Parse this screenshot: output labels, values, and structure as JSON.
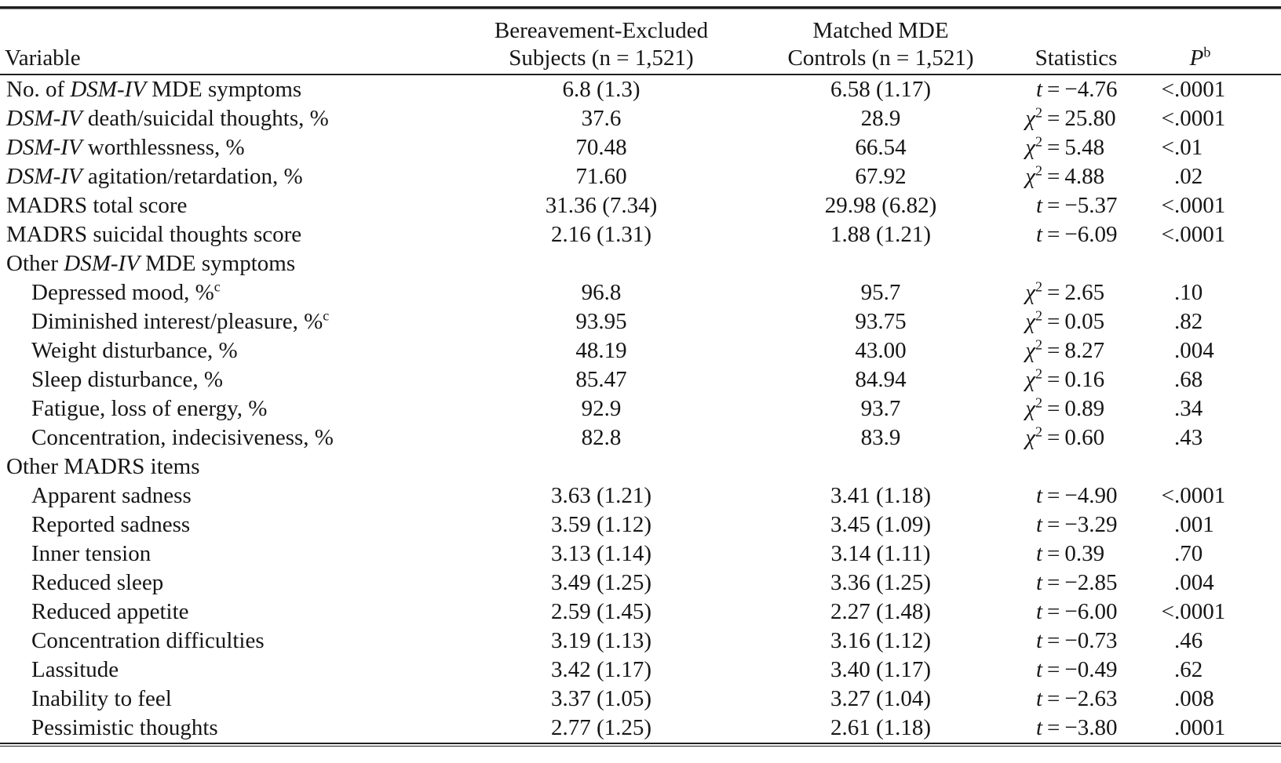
{
  "table": {
    "columns": {
      "variable": "Variable",
      "group1_line1": "Bereavement-Excluded",
      "group1_line2": "Subjects (n = 1,521)",
      "group2_line1": "Matched MDE",
      "group2_line2": "Controls (n = 1,521)",
      "statistics": "Statistics",
      "p_label": "P",
      "p_sup": "b"
    },
    "rows": [
      {
        "label": [
          {
            "t": "No. of "
          },
          {
            "t": "DSM-IV",
            "i": 1
          },
          {
            "t": " MDE symptoms"
          }
        ],
        "v1": "6.8 (1.3)",
        "v2": "6.58 (1.17)",
        "sym": "t",
        "sv": "−4.76",
        "pp": "<",
        "pv": ".0001"
      },
      {
        "label": [
          {
            "t": "DSM-IV",
            "i": 1
          },
          {
            "t": " death/suicidal thoughts, %"
          }
        ],
        "v1": "37.6",
        "v2": "28.9",
        "sym": "chi2",
        "sv": "25.80",
        "pp": "<",
        "pv": ".0001"
      },
      {
        "label": [
          {
            "t": "DSM-IV",
            "i": 1
          },
          {
            "t": " worthlessness, %"
          }
        ],
        "v1": "70.48",
        "v2": "66.54",
        "sym": "chi2",
        "sv": "5.48",
        "pp": "<",
        "pv": ".01"
      },
      {
        "label": [
          {
            "t": "DSM-IV",
            "i": 1
          },
          {
            "t": " agitation/retardation, %"
          }
        ],
        "v1": "71.60",
        "v2": "67.92",
        "sym": "chi2",
        "sv": "4.88",
        "pp": "",
        "pv": ".02"
      },
      {
        "label": [
          {
            "t": "MADRS total score"
          }
        ],
        "v1": "31.36 (7.34)",
        "v2": "29.98 (6.82)",
        "sym": "t",
        "sv": "−5.37",
        "pp": "<",
        "pv": ".0001"
      },
      {
        "label": [
          {
            "t": "MADRS suicidal thoughts score"
          }
        ],
        "v1": "2.16 (1.31)",
        "v2": "1.88 (1.21)",
        "sym": "t",
        "sv": "−6.09",
        "pp": "<",
        "pv": ".0001"
      },
      {
        "label": [
          {
            "t": "Other "
          },
          {
            "t": "DSM-IV",
            "i": 1
          },
          {
            "t": " MDE symptoms"
          }
        ],
        "section": 1
      },
      {
        "label": [
          {
            "t": "Depressed mood, %"
          },
          {
            "t": "c",
            "sup": 1
          }
        ],
        "indent": 1,
        "v1": "96.8",
        "v2": "95.7",
        "sym": "chi2",
        "sv": "2.65",
        "pp": "",
        "pv": ".10"
      },
      {
        "label": [
          {
            "t": "Diminished interest/pleasure, %"
          },
          {
            "t": "c",
            "sup": 1
          }
        ],
        "indent": 1,
        "v1": "93.95",
        "v2": "93.75",
        "sym": "chi2",
        "sv": "0.05",
        "pp": "",
        "pv": ".82"
      },
      {
        "label": [
          {
            "t": "Weight disturbance, %"
          }
        ],
        "indent": 1,
        "v1": "48.19",
        "v2": "43.00",
        "sym": "chi2",
        "sv": "8.27",
        "pp": "",
        "pv": ".004"
      },
      {
        "label": [
          {
            "t": "Sleep disturbance, %"
          }
        ],
        "indent": 1,
        "v1": "85.47",
        "v2": "84.94",
        "sym": "chi2",
        "sv": "0.16",
        "pp": "",
        "pv": ".68"
      },
      {
        "label": [
          {
            "t": "Fatigue, loss of energy, %"
          }
        ],
        "indent": 1,
        "v1": "92.9",
        "v2": "93.7",
        "sym": "chi2",
        "sv": "0.89",
        "pp": "",
        "pv": ".34"
      },
      {
        "label": [
          {
            "t": "Concentration, indecisiveness, %"
          }
        ],
        "indent": 1,
        "v1": "82.8",
        "v2": "83.9",
        "sym": "chi2",
        "sv": "0.60",
        "pp": "",
        "pv": ".43"
      },
      {
        "label": [
          {
            "t": "Other MADRS items"
          }
        ],
        "section": 1
      },
      {
        "label": [
          {
            "t": "Apparent sadness"
          }
        ],
        "indent": 1,
        "v1": "3.63 (1.21)",
        "v2": "3.41 (1.18)",
        "sym": "t",
        "sv": "−4.90",
        "pp": "<",
        "pv": ".0001"
      },
      {
        "label": [
          {
            "t": "Reported sadness"
          }
        ],
        "indent": 1,
        "v1": "3.59 (1.12)",
        "v2": "3.45 (1.09)",
        "sym": "t",
        "sv": "−3.29",
        "pp": "",
        "pv": ".001"
      },
      {
        "label": [
          {
            "t": "Inner tension"
          }
        ],
        "indent": 1,
        "v1": "3.13 (1.14)",
        "v2": "3.14 (1.11)",
        "sym": "t",
        "sv": "0.39",
        "pp": "",
        "pv": ".70"
      },
      {
        "label": [
          {
            "t": "Reduced sleep"
          }
        ],
        "indent": 1,
        "v1": "3.49 (1.25)",
        "v2": "3.36 (1.25)",
        "sym": "t",
        "sv": "−2.85",
        "pp": "",
        "pv": ".004"
      },
      {
        "label": [
          {
            "t": "Reduced appetite"
          }
        ],
        "indent": 1,
        "v1": "2.59 (1.45)",
        "v2": "2.27 (1.48)",
        "sym": "t",
        "sv": "−6.00",
        "pp": "<",
        "pv": ".0001"
      },
      {
        "label": [
          {
            "t": "Concentration difficulties"
          }
        ],
        "indent": 1,
        "v1": "3.19 (1.13)",
        "v2": "3.16 (1.12)",
        "sym": "t",
        "sv": "−0.73",
        "pp": "",
        "pv": ".46"
      },
      {
        "label": [
          {
            "t": "Lassitude"
          }
        ],
        "indent": 1,
        "v1": "3.42 (1.17)",
        "v2": "3.40 (1.17)",
        "sym": "t",
        "sv": "−0.49",
        "pp": "",
        "pv": ".62"
      },
      {
        "label": [
          {
            "t": "Inability to feel"
          }
        ],
        "indent": 1,
        "v1": "3.37 (1.05)",
        "v2": "3.27 (1.04)",
        "sym": "t",
        "sv": "−2.63",
        "pp": "",
        "pv": ".008"
      },
      {
        "label": [
          {
            "t": "Pessimistic thoughts"
          }
        ],
        "indent": 1,
        "v1": "2.77 (1.25)",
        "v2": "2.61 (1.18)",
        "sym": "t",
        "sv": "−3.80",
        "pp": "",
        "pv": ".0001"
      }
    ]
  }
}
